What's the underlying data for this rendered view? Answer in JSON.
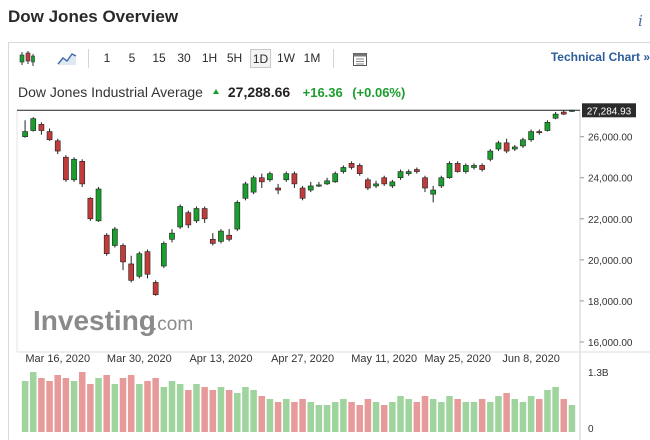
{
  "page": {
    "title": "Dow Jones Overview",
    "info_icon": "info-icon"
  },
  "toolbar": {
    "chart_type_icons": [
      "candlestick-icon",
      "line-chart-icon"
    ],
    "intervals": [
      "1",
      "5",
      "15",
      "30",
      "1H",
      "5H",
      "1D",
      "1W",
      "1M"
    ],
    "active_interval": "1D",
    "calendar_icon": "calendar-icon",
    "technical_chart": "Technical Chart",
    "technical_chart_arrow": "»"
  },
  "quote": {
    "name": "Dow Jones Industrial Average",
    "price": "27,288.66",
    "change": "+16.36",
    "change_pct": "(+0.06%)",
    "color_up": "#1a9e2e",
    "color_down": "#c23b3b"
  },
  "watermark": {
    "brand": "Investing",
    "suffix": ".com"
  },
  "chart_data": {
    "type": "candlestick",
    "y_ticks": [
      "26,000.00",
      "24,000.00",
      "22,000.00",
      "20,000.00",
      "18,000.00",
      "16,000.00"
    ],
    "y_tick_values": [
      26000,
      24000,
      22000,
      20000,
      18000,
      16000
    ],
    "ylim": [
      15900,
      27300
    ],
    "current_price_label": "27,284.93",
    "current_price": 27284.93,
    "x_labels": [
      "Mar 16, 2020",
      "Mar 30, 2020",
      "Apr 13, 2020",
      "Apr 27, 2020",
      "May 11, 2020",
      "May 25, 2020",
      "Jun 8, 2020"
    ],
    "x_label_index": [
      4,
      14,
      24,
      34,
      44,
      53,
      62
    ],
    "volume_ticks": [
      "1.3B",
      "0"
    ],
    "candles": [
      [
        26000,
        26250,
        26800,
        25950
      ],
      [
        26300,
        26880,
        26950,
        26250
      ],
      [
        26600,
        26300,
        26700,
        26100
      ],
      [
        26250,
        25850,
        26400,
        25800
      ],
      [
        25800,
        25300,
        25900,
        25150
      ],
      [
        25000,
        23900,
        25100,
        23800
      ],
      [
        23900,
        24900,
        25000,
        23800
      ],
      [
        24800,
        23700,
        24900,
        23550
      ],
      [
        23000,
        22000,
        23050,
        21900
      ],
      [
        21900,
        23450,
        23550,
        21850
      ],
      [
        21200,
        20300,
        21300,
        20200
      ],
      [
        20700,
        21500,
        21600,
        20600
      ],
      [
        20700,
        19900,
        20800,
        19500
      ],
      [
        19800,
        19000,
        20200,
        18900
      ],
      [
        19200,
        20300,
        20400,
        19100
      ],
      [
        20400,
        19300,
        20500,
        19100
      ],
      [
        18900,
        18300,
        19000,
        18250
      ],
      [
        19700,
        20800,
        20900,
        19600
      ],
      [
        21000,
        21300,
        21500,
        20850
      ],
      [
        21600,
        22600,
        22700,
        21500
      ],
      [
        22300,
        21700,
        22400,
        21550
      ],
      [
        21900,
        22500,
        22600,
        21800
      ],
      [
        22500,
        22000,
        22600,
        21800
      ],
      [
        21000,
        20800,
        21300,
        20700
      ],
      [
        20900,
        21400,
        21500,
        20800
      ],
      [
        21200,
        21000,
        21500,
        20900
      ],
      [
        21500,
        22800,
        22900,
        21400
      ],
      [
        23000,
        23700,
        23800,
        22900
      ],
      [
        23300,
        24000,
        24100,
        23200
      ],
      [
        24000,
        23800,
        24200,
        23500
      ],
      [
        23900,
        24200,
        24300,
        23800
      ],
      [
        23500,
        23400,
        23700,
        23200
      ],
      [
        23900,
        24200,
        24300,
        23800
      ],
      [
        24200,
        23700,
        24300,
        23500
      ],
      [
        23500,
        23000,
        23600,
        22900
      ],
      [
        23400,
        23600,
        23800,
        23300
      ],
      [
        23600,
        23650,
        23800,
        23550
      ],
      [
        23700,
        23850,
        24000,
        23650
      ],
      [
        23800,
        24200,
        24300,
        23750
      ],
      [
        24300,
        24500,
        24600,
        24200
      ],
      [
        24700,
        24500,
        24800,
        24400
      ],
      [
        24600,
        24200,
        24700,
        24100
      ],
      [
        23900,
        23500,
        24000,
        23400
      ],
      [
        23600,
        23700,
        23850,
        23500
      ],
      [
        24000,
        23700,
        24100,
        23600
      ],
      [
        23600,
        23800,
        23900,
        23500
      ],
      [
        24000,
        24300,
        24400,
        23900
      ],
      [
        24200,
        24300,
        24400,
        24100
      ],
      [
        24400,
        24300,
        24500,
        24200
      ],
      [
        24000,
        23500,
        24100,
        23300
      ],
      [
        23200,
        23400,
        23600,
        22800
      ],
      [
        23600,
        24000,
        24100,
        23500
      ],
      [
        24000,
        24700,
        24800,
        23950
      ],
      [
        24700,
        24300,
        24800,
        24250
      ],
      [
        24300,
        24600,
        24700,
        24200
      ],
      [
        24500,
        24600,
        24700,
        24400
      ],
      [
        24600,
        24400,
        24700,
        24300
      ],
      [
        24900,
        25300,
        25400,
        24800
      ],
      [
        25400,
        25700,
        25800,
        25300
      ],
      [
        25700,
        25300,
        25900,
        25200
      ],
      [
        25400,
        25500,
        25600,
        25300
      ],
      [
        25550,
        25850,
        25950,
        25450
      ],
      [
        25850,
        26250,
        26350,
        25750
      ],
      [
        26250,
        26200,
        26350,
        26100
      ],
      [
        26300,
        26700,
        26800,
        26250
      ],
      [
        26900,
        27100,
        27200,
        26850
      ],
      [
        27200,
        27100,
        27300,
        27050
      ],
      [
        27250,
        27290,
        27300,
        27200
      ]
    ],
    "volumes": [
      0.85,
      1.0,
      0.9,
      0.85,
      0.95,
      0.9,
      0.85,
      1.0,
      0.8,
      0.9,
      0.95,
      0.8,
      0.9,
      0.95,
      0.8,
      0.85,
      0.9,
      0.75,
      0.85,
      0.8,
      0.7,
      0.8,
      0.75,
      0.7,
      0.75,
      0.7,
      0.65,
      0.75,
      0.7,
      0.6,
      0.55,
      0.5,
      0.55,
      0.5,
      0.55,
      0.5,
      0.45,
      0.45,
      0.5,
      0.55,
      0.5,
      0.45,
      0.55,
      0.5,
      0.45,
      0.5,
      0.6,
      0.55,
      0.5,
      0.6,
      0.55,
      0.5,
      0.6,
      0.55,
      0.5,
      0.5,
      0.55,
      0.5,
      0.6,
      0.65,
      0.55,
      0.5,
      0.6,
      0.55,
      0.7,
      0.75,
      0.55,
      0.45
    ]
  }
}
